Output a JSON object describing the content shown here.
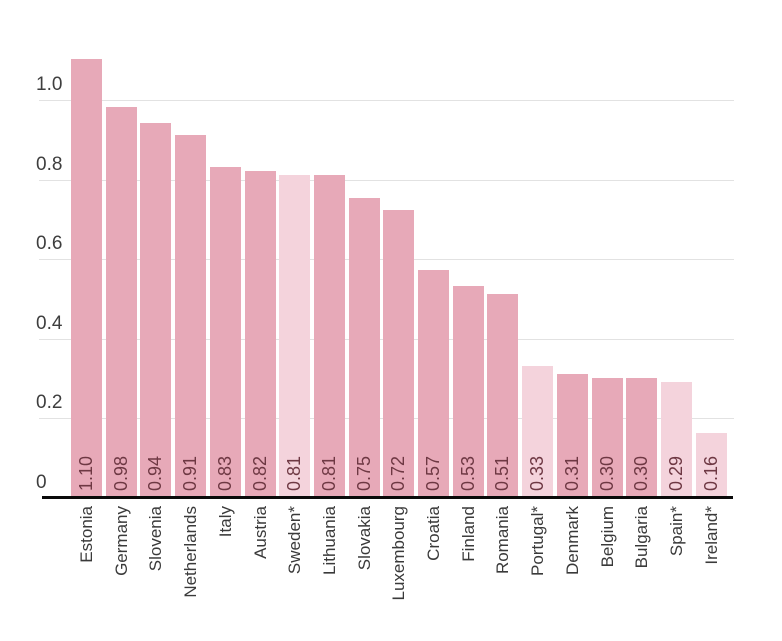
{
  "chart_data": {
    "type": "bar",
    "title": "",
    "xlabel": "",
    "ylabel": "",
    "ylim": [
      0,
      1.15
    ],
    "grid": true,
    "legend": "none",
    "y_ticks": [
      "0",
      "0.2",
      "0.4",
      "0.6",
      "0.8",
      "1.0"
    ],
    "categories": [
      "Estonia",
      "Germany",
      "Slovenia",
      "Netherlands",
      "Italy",
      "Austria",
      "Sweden*",
      "Lithuania",
      "Slovakia",
      "Luxembourg",
      "Croatia",
      "Finland",
      "Romania",
      "Portugal*",
      "Denmark",
      "Belgium",
      "Bulgaria",
      "Spain*",
      "Ireland*"
    ],
    "values": [
      1.1,
      0.98,
      0.94,
      0.91,
      0.83,
      0.82,
      0.81,
      0.81,
      0.75,
      0.72,
      0.57,
      0.53,
      0.51,
      0.33,
      0.31,
      0.3,
      0.3,
      0.29,
      0.16
    ],
    "bars": [
      {
        "country": "Estonia",
        "value": 1.1,
        "label": "1.10",
        "light": false
      },
      {
        "country": "Germany",
        "value": 0.98,
        "label": "0.98",
        "light": false
      },
      {
        "country": "Slovenia",
        "value": 0.94,
        "label": "0.94",
        "light": false
      },
      {
        "country": "Netherlands",
        "value": 0.91,
        "label": "0.91",
        "light": false
      },
      {
        "country": "Italy",
        "value": 0.83,
        "label": "0.83",
        "light": false
      },
      {
        "country": "Austria",
        "value": 0.82,
        "label": "0.82",
        "light": false
      },
      {
        "country": "Sweden*",
        "value": 0.81,
        "label": "0.81",
        "light": true
      },
      {
        "country": "Lithuania",
        "value": 0.81,
        "label": "0.81",
        "light": false
      },
      {
        "country": "Slovakia",
        "value": 0.75,
        "label": "0.75",
        "light": false
      },
      {
        "country": "Luxembourg",
        "value": 0.72,
        "label": "0.72",
        "light": false
      },
      {
        "country": "Croatia",
        "value": 0.57,
        "label": "0.57",
        "light": false
      },
      {
        "country": "Finland",
        "value": 0.53,
        "label": "0.53",
        "light": false
      },
      {
        "country": "Romania",
        "value": 0.51,
        "label": "0.51",
        "light": false
      },
      {
        "country": "Portugal*",
        "value": 0.33,
        "label": "0.33",
        "light": true
      },
      {
        "country": "Denmark",
        "value": 0.31,
        "label": "0.31",
        "light": false
      },
      {
        "country": "Belgium",
        "value": 0.3,
        "label": "0.30",
        "light": false
      },
      {
        "country": "Bulgaria",
        "value": 0.3,
        "label": "0.30",
        "light": false
      },
      {
        "country": "Spain*",
        "value": 0.29,
        "label": "0.29",
        "light": true
      },
      {
        "country": "Ireland*",
        "value": 0.16,
        "label": "0.16",
        "light": true
      }
    ],
    "colors": {
      "bar": "#e7a9b8",
      "bar_light": "#f4d3dc",
      "value_label": "#6e3843",
      "tick_label": "#3e3e3e",
      "category_label": "#3a3a3a",
      "gridline": "#e2e2e2",
      "baseline": "#0a0a0a"
    }
  }
}
